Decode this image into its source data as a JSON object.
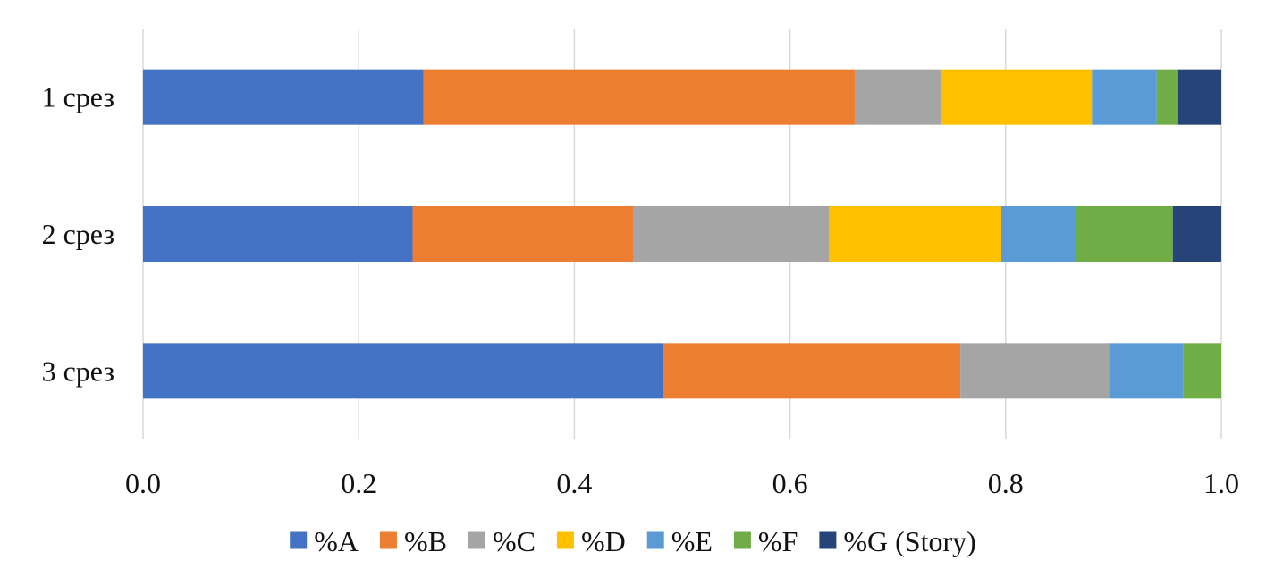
{
  "chart_data": {
    "type": "bar",
    "orientation": "horizontal",
    "stacked": true,
    "title": "",
    "xlabel": "",
    "ylabel": "",
    "xlim": [
      0.0,
      1.0
    ],
    "grid": "vertical",
    "legend_position": "bottom",
    "x_ticks": [
      "0.0",
      "0.2",
      "0.4",
      "0.6",
      "0.8",
      "1.0"
    ],
    "x_tick_values": [
      0.0,
      0.2,
      0.4,
      0.6,
      0.8,
      1.0
    ],
    "categories": [
      "1 срез",
      "2 срез",
      "3 срез"
    ],
    "series": [
      {
        "name": "%A",
        "color": "#4472C4",
        "values": [
          0.26,
          0.25,
          0.482
        ]
      },
      {
        "name": "%B",
        "color": "#ED7D31",
        "values": [
          0.4,
          0.205,
          0.276
        ]
      },
      {
        "name": "%C",
        "color": "#A5A5A5",
        "values": [
          0.08,
          0.181,
          0.138
        ]
      },
      {
        "name": "%D",
        "color": "#FFC000",
        "values": [
          0.14,
          0.16,
          0.0
        ]
      },
      {
        "name": "%E",
        "color": "#5B9BD5",
        "values": [
          0.06,
          0.069,
          0.069
        ]
      },
      {
        "name": "%F",
        "color": "#70AD47",
        "values": [
          0.02,
          0.09,
          0.035
        ]
      },
      {
        "name": "%G (Story)",
        "color": "#264478",
        "values": [
          0.04,
          0.045,
          0.0
        ]
      }
    ]
  }
}
